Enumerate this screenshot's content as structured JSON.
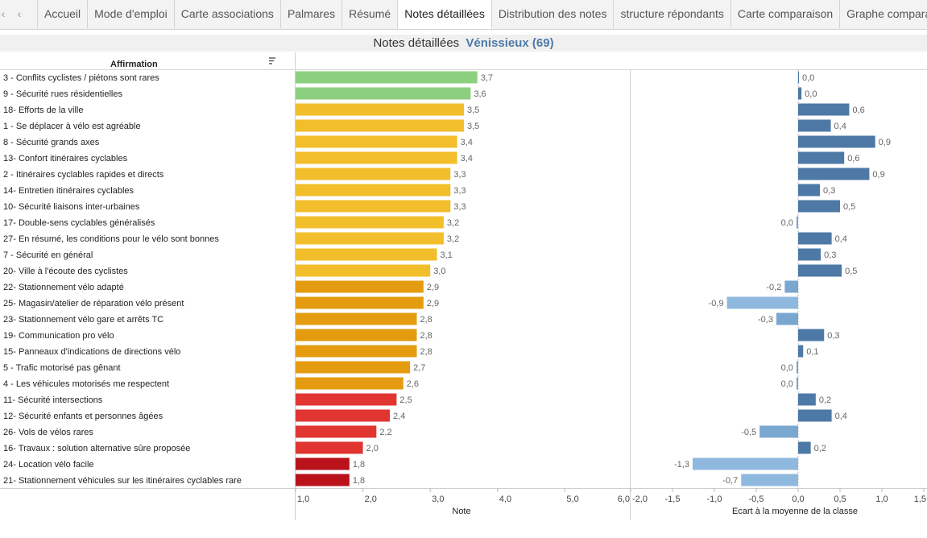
{
  "nav": {
    "first": "‹",
    "prev": "‹"
  },
  "tabs": [
    "Accueil",
    "Mode d'emploi",
    "Carte associations",
    "Palmares",
    "Résumé",
    "Notes détaillées",
    "Distribution des notes",
    "structure répondants",
    "Carte comparaison",
    "Graphe compara"
  ],
  "active_tab": 5,
  "title": {
    "main": "Notes détaillées",
    "city": "Vénissieux (69)"
  },
  "colors": {
    "green": "#8ccf7e",
    "yellow": "#f2be2b",
    "orange": "#e49b0f",
    "red": "#e03531",
    "darkred": "#b9121b",
    "pos_dark": "#4e79a7",
    "pos_mid": "#6a9bc6",
    "neg_light": "#8fb8de",
    "neg_mid": "#79a7d0"
  },
  "chart_data": [
    {
      "type": "bar",
      "orientation": "horizontal",
      "column_header": "Affirmation",
      "xlabel": "Note",
      "xlim": [
        1.0,
        6.0
      ],
      "xticks": [
        "1,0",
        "2,0",
        "3,0",
        "4,0",
        "5,0",
        "6,0"
      ],
      "categories": [
        "3 - Conflits cyclistes / piétons sont rares",
        "9 - Sécurité rues résidentielles",
        "18- Efforts de la ville",
        "1 - Se déplacer à vélo est agréable",
        "8 - Sécurité grands axes",
        "13- Confort itinéraires cyclables",
        "2 - Itinéraires cyclables rapides et directs",
        "14- Entretien itinéraires cyclables",
        "10- Sécurité liaisons inter-urbaines",
        "17- Double-sens cyclables généralisés",
        "27- En résumé, les conditions pour le vélo sont bonnes",
        "7 - Sécurité en général",
        "20- Ville à l'écoute des cyclistes",
        "22- Stationnement vélo adapté",
        "25- Magasin/atelier de réparation vélo présent",
        "23- Stationnement vélo gare et arrêts TC",
        "19- Communication pro vélo",
        "15- Panneaux d'indications de directions vélo",
        "5 - Trafic motorisé pas gênant",
        "4 - Les véhicules motorisés me respectent",
        "11- Sécurité intersections",
        "12- Sécurité enfants et personnes âgées",
        "26- Vols de vélos rares",
        "16- Travaux : solution alternative sûre proposée",
        "24- Location vélo facile",
        "21- Stationnement véhicules sur les itinéraires cyclables rare"
      ],
      "values": [
        3.7,
        3.6,
        3.5,
        3.5,
        3.4,
        3.4,
        3.3,
        3.3,
        3.3,
        3.2,
        3.2,
        3.1,
        3.0,
        2.9,
        2.9,
        2.8,
        2.8,
        2.8,
        2.7,
        2.6,
        2.5,
        2.4,
        2.2,
        2.0,
        1.8,
        1.8
      ],
      "labels": [
        "3,7",
        "3,6",
        "3,5",
        "3,5",
        "3,4",
        "3,4",
        "3,3",
        "3,3",
        "3,3",
        "3,2",
        "3,2",
        "3,1",
        "3,0",
        "2,9",
        "2,9",
        "2,8",
        "2,8",
        "2,8",
        "2,7",
        "2,6",
        "2,5",
        "2,4",
        "2,2",
        "2,0",
        "1,8",
        "1,8"
      ]
    },
    {
      "type": "bar",
      "orientation": "horizontal",
      "xlabel": "Ecart à la moyenne de la classe",
      "xlim": [
        -2.0,
        1.5
      ],
      "xticks": [
        "-2,0",
        "-1,5",
        "-1,0",
        "-0,5",
        "0,0",
        "0,5",
        "1,0",
        "1,5"
      ],
      "values": [
        0.01,
        0.04,
        0.61,
        0.39,
        0.92,
        0.55,
        0.85,
        0.26,
        0.5,
        -0.02,
        0.4,
        0.27,
        0.52,
        -0.16,
        -0.85,
        -0.26,
        0.31,
        0.06,
        -0.02,
        -0.02,
        0.21,
        0.4,
        -0.46,
        0.15,
        -1.26,
        -0.68
      ],
      "labels": [
        "0,0",
        "0,0",
        "0,6",
        "0,4",
        "0,9",
        "0,6",
        "0,9",
        "0,3",
        "0,5",
        "0,0",
        "0,4",
        "0,3",
        "0,5",
        "-0,2",
        "-0,9",
        "-0,3",
        "0,3",
        "0,1",
        "0,0",
        "0,0",
        "0,2",
        "0,4",
        "-0,5",
        "0,2",
        "-1,3",
        "-0,7"
      ]
    }
  ]
}
